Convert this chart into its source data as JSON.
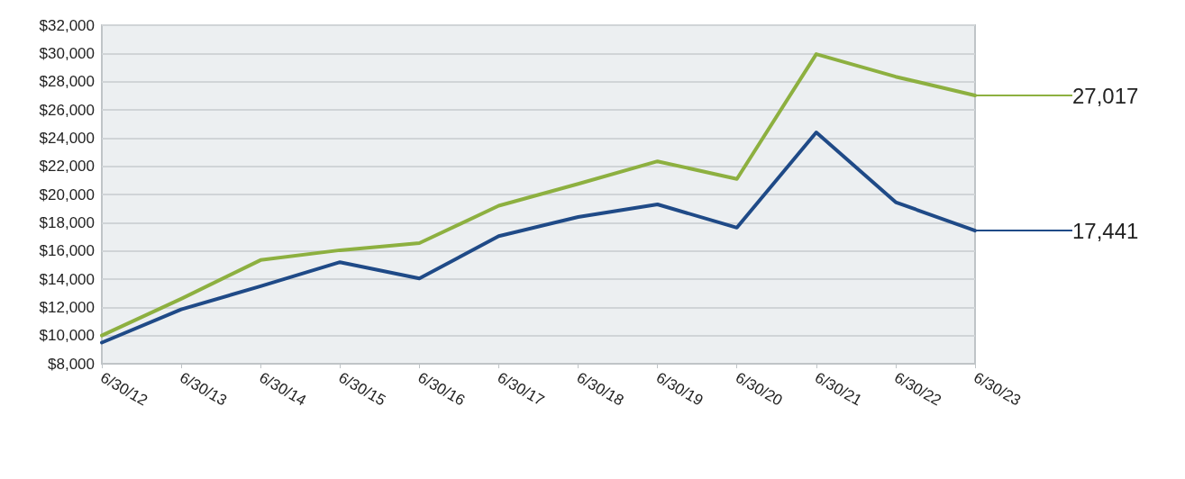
{
  "chart_data": {
    "type": "line",
    "categories": [
      "6/30/12",
      "6/30/13",
      "6/30/14",
      "6/30/15",
      "6/30/16",
      "6/30/17",
      "6/30/18",
      "6/30/19",
      "6/30/20",
      "6/30/21",
      "6/30/22",
      "6/30/23"
    ],
    "series": [
      {
        "color": "#1f4a87",
        "values": [
          9500,
          11850,
          13500,
          15200,
          14050,
          17050,
          18400,
          19300,
          17650,
          24400,
          19450,
          17441
        ],
        "value_labels": [
          null,
          null,
          null,
          null,
          null,
          null,
          null,
          null,
          null,
          null,
          null,
          "17,441"
        ]
      },
      {
        "color": "#8db040",
        "values": [
          10000,
          12600,
          15350,
          16050,
          16550,
          19200,
          20750,
          22350,
          21100,
          29950,
          28350,
          27017
        ],
        "value_labels": [
          null,
          null,
          null,
          null,
          null,
          null,
          null,
          null,
          null,
          null,
          null,
          "27,017"
        ]
      }
    ],
    "ylim": [
      8000,
      32000
    ],
    "yticks": [
      {
        "value": 8000,
        "label": "$8,000"
      },
      {
        "value": 10000,
        "label": "$10,000"
      },
      {
        "value": 12000,
        "label": "$12,000"
      },
      {
        "value": 14000,
        "label": "$14,000"
      },
      {
        "value": 16000,
        "label": "$16,000"
      },
      {
        "value": 18000,
        "label": "$18,000"
      },
      {
        "value": 20000,
        "label": "$20,000"
      },
      {
        "value": 22000,
        "label": "$22,000"
      },
      {
        "value": 24000,
        "label": "$24,000"
      },
      {
        "value": 26000,
        "label": "$26,000"
      },
      {
        "value": 28000,
        "label": "$28,000"
      },
      {
        "value": 30000,
        "label": "$30,000"
      },
      {
        "value": 32000,
        "label": "$32,000"
      }
    ],
    "grid": "y",
    "marker": "none",
    "line_style": "solid"
  }
}
